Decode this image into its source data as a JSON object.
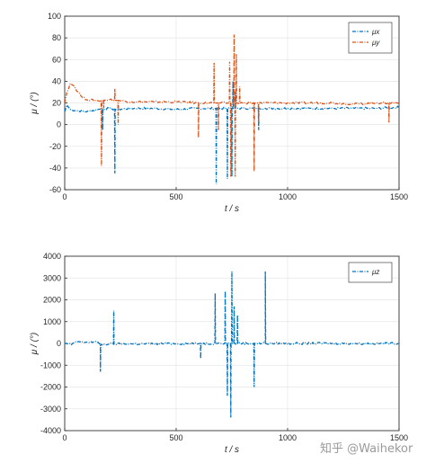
{
  "watermark": "知乎 @Waihekor",
  "colors": {
    "blue": "#0072BD",
    "orange": "#D95319",
    "grid": "#e6e6e6",
    "axis": "#262626"
  },
  "chart_data": [
    {
      "type": "line",
      "xlabel": "t / s",
      "ylabel": "μ / (°)",
      "xlim": [
        0,
        1500
      ],
      "ylim": [
        -60,
        100
      ],
      "xticks": [
        "0",
        "500",
        "1000",
        "1500"
      ],
      "yticks": [
        "100",
        "80",
        "60",
        "40",
        "20",
        "0",
        "-20",
        "-40",
        "-60"
      ],
      "grid": true,
      "legend_position": "top-right",
      "series": [
        {
          "name": "μx",
          "color": "#0072BD",
          "style": "dash-dot",
          "points": [
            [
              0,
              12
            ],
            [
              10,
              18
            ],
            [
              25,
              14
            ],
            [
              50,
              13
            ],
            [
              100,
              12
            ],
            [
              150,
              14
            ],
            [
              200,
              15
            ],
            [
              230,
              14
            ],
            [
              300,
              15
            ],
            [
              400,
              15
            ],
            [
              500,
              14
            ],
            [
              600,
              15
            ],
            [
              700,
              15
            ],
            [
              800,
              15
            ],
            [
              900,
              15
            ],
            [
              1000,
              15
            ],
            [
              1100,
              15
            ],
            [
              1200,
              15
            ],
            [
              1300,
              15
            ],
            [
              1400,
              15
            ],
            [
              1500,
              16
            ]
          ],
          "spikes": [
            [
              170,
              -5
            ],
            [
              225,
              -45
            ],
            [
              680,
              -55
            ],
            [
              730,
              -50
            ],
            [
              750,
              -48
            ],
            [
              755,
              40
            ],
            [
              765,
              30
            ],
            [
              870,
              -5
            ]
          ]
        },
        {
          "name": "μy",
          "color": "#D95319",
          "style": "dash-dot",
          "points": [
            [
              0,
              20
            ],
            [
              10,
              30
            ],
            [
              25,
              38
            ],
            [
              40,
              36
            ],
            [
              60,
              30
            ],
            [
              80,
              25
            ],
            [
              100,
              23
            ],
            [
              150,
              22
            ],
            [
              200,
              23
            ],
            [
              250,
              22
            ],
            [
              300,
              21
            ],
            [
              400,
              21
            ],
            [
              500,
              21
            ],
            [
              600,
              20
            ],
            [
              700,
              20
            ],
            [
              800,
              20
            ],
            [
              900,
              20
            ],
            [
              1000,
              20
            ],
            [
              1100,
              20
            ],
            [
              1200,
              20
            ],
            [
              1300,
              19
            ],
            [
              1400,
              20
            ],
            [
              1500,
              20
            ]
          ],
          "spikes": [
            [
              165,
              -38
            ],
            [
              175,
              15
            ],
            [
              225,
              33
            ],
            [
              240,
              0
            ],
            [
              600,
              -12
            ],
            [
              670,
              57
            ],
            [
              690,
              -5
            ],
            [
              740,
              58
            ],
            [
              745,
              -48
            ],
            [
              760,
              83
            ],
            [
              765,
              -48
            ],
            [
              770,
              65
            ],
            [
              785,
              35
            ],
            [
              850,
              -43
            ],
            [
              870,
              3
            ],
            [
              1455,
              2
            ]
          ]
        }
      ]
    },
    {
      "type": "line",
      "xlabel": "t / s",
      "ylabel": "μ / (°)",
      "xlim": [
        0,
        1500
      ],
      "ylim": [
        -4000,
        4000
      ],
      "xticks": [
        "0",
        "500",
        "1000",
        "1500"
      ],
      "yticks": [
        "4000",
        "3000",
        "2000",
        "1000",
        "0",
        "-1000",
        "-2000",
        "-3000",
        "-4000"
      ],
      "grid": true,
      "legend_position": "top-right",
      "series": [
        {
          "name": "μz",
          "color": "#0072BD",
          "style": "dash-dot",
          "points": [
            [
              0,
              0
            ],
            [
              30,
              -60
            ],
            [
              50,
              80
            ],
            [
              100,
              60
            ],
            [
              150,
              50
            ],
            [
              160,
              -40
            ],
            [
              200,
              -30
            ],
            [
              300,
              -20
            ],
            [
              500,
              -10
            ],
            [
              700,
              0
            ],
            [
              900,
              0
            ],
            [
              1500,
              0
            ]
          ],
          "spikes": [
            [
              160,
              -1300
            ],
            [
              220,
              1500
            ],
            [
              610,
              -700
            ],
            [
              675,
              2300
            ],
            [
              720,
              2400
            ],
            [
              730,
              -2400
            ],
            [
              745,
              -3400
            ],
            [
              750,
              3300
            ],
            [
              760,
              1700
            ],
            [
              775,
              1300
            ],
            [
              850,
              -2000
            ],
            [
              900,
              3300
            ]
          ]
        }
      ]
    }
  ]
}
